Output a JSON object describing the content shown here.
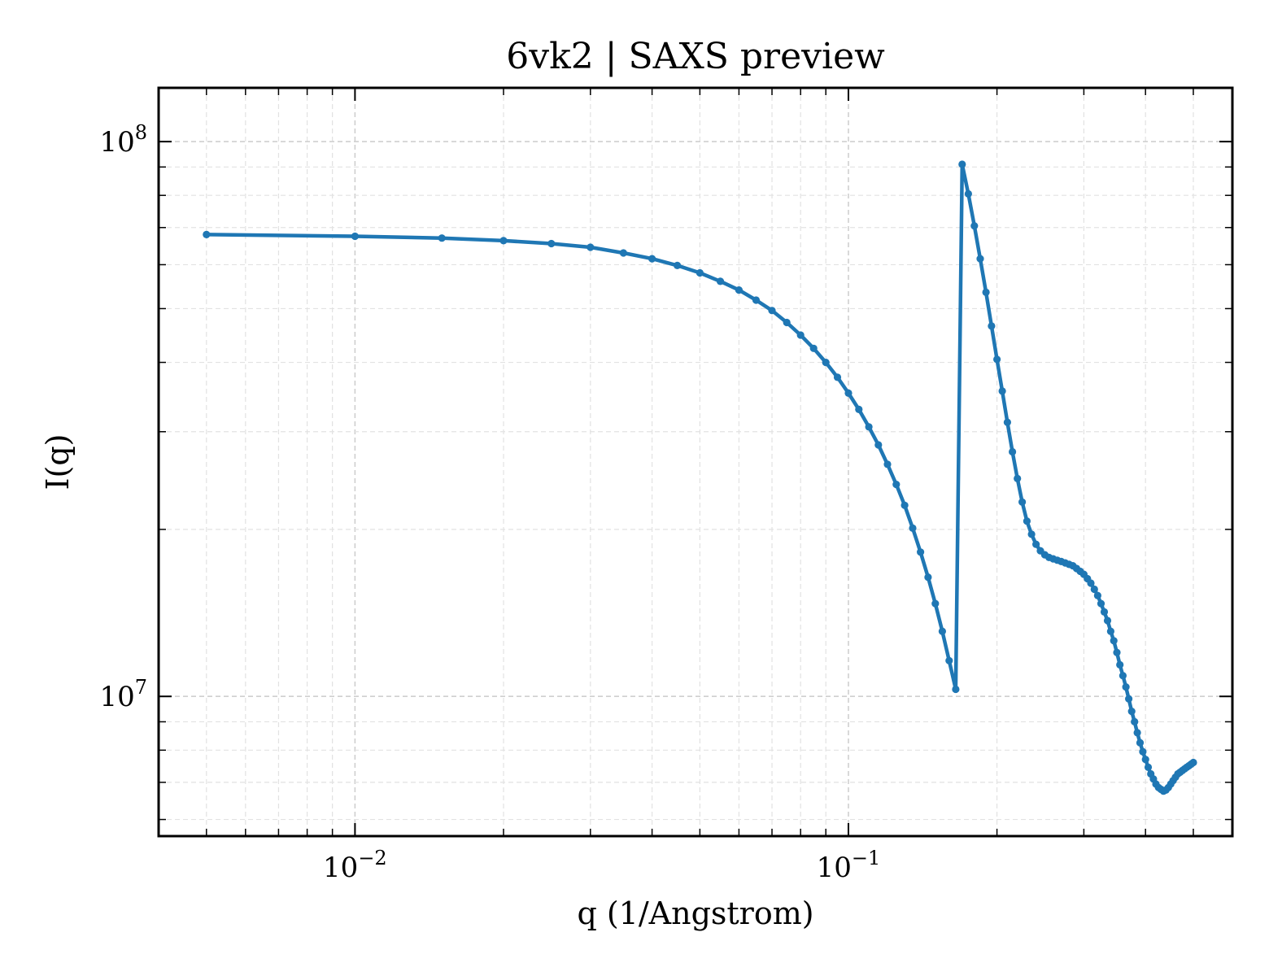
{
  "chart_data": {
    "type": "line",
    "title": "6vk2 | SAXS preview",
    "xlabel": "q (1/Angstrom)",
    "ylabel": "I(q)",
    "xscale": "log",
    "yscale": "log",
    "xlim": [
      0.004,
      0.6
    ],
    "ylim": [
      5600000.0,
      125000000.0
    ],
    "grid": true,
    "color": "#1f77b4",
    "x_ticks": [
      {
        "value": 0.01,
        "base": "10",
        "exp": "−2"
      },
      {
        "value": 0.1,
        "base": "10",
        "exp": "−1"
      }
    ],
    "y_ticks": [
      {
        "value": 10000000.0,
        "base": "10",
        "exp": "7"
      },
      {
        "value": 100000000.0,
        "base": "10",
        "exp": "8"
      }
    ],
    "series": [
      {
        "x": [
          0.005,
          0.01,
          0.015,
          0.02,
          0.025,
          0.03,
          0.035,
          0.04,
          0.045,
          0.05,
          0.055,
          0.06,
          0.065,
          0.07,
          0.075,
          0.08,
          0.085,
          0.09,
          0.095,
          0.1,
          0.105,
          0.11,
          0.115,
          0.12,
          0.125,
          0.13,
          0.135,
          0.14,
          0.145,
          0.15,
          0.155,
          0.16,
          0.165,
          0.17,
          0.175,
          0.18,
          0.185,
          0.19,
          0.195,
          0.2,
          0.205,
          0.21,
          0.215,
          0.22,
          0.225,
          0.23,
          0.235,
          0.24,
          0.245,
          0.25,
          0.255,
          0.26,
          0.265,
          0.27,
          0.275,
          0.28,
          0.285,
          0.29,
          0.295,
          0.3,
          0.305,
          0.31,
          0.315,
          0.32,
          0.325,
          0.33,
          0.335,
          0.34,
          0.345,
          0.35,
          0.355,
          0.36,
          0.365,
          0.37,
          0.375,
          0.38,
          0.385,
          0.39,
          0.395,
          0.4,
          0.405,
          0.41,
          0.415,
          0.42,
          0.425,
          0.43,
          0.435,
          0.44,
          0.445,
          0.45,
          0.455,
          0.46,
          0.465,
          0.47,
          0.475,
          0.48,
          0.485,
          0.49,
          0.495,
          0.5
        ],
        "y": [
          68000000.0,
          67500000.0,
          67000000.0,
          66300000.0,
          65500000.0,
          64500000.0,
          63000000.0,
          61500000.0,
          59800000.0,
          58000000.0,
          56000000.0,
          54000000.0,
          51800000.0,
          49600000.0,
          47200000.0,
          44800000.0,
          42400000.0,
          40000000.0,
          37600000.0,
          35200000.0,
          32900000.0,
          30600000.0,
          28400000.0,
          26200000.0,
          24100000.0,
          22100000.0,
          20100000.0,
          18200000.0,
          16400000.0,
          14700000.0,
          13100000.0,
          11600000.0,
          10300000.0,
          91000000.0,
          80500000.0,
          70500000.0,
          61500000.0,
          53500000.0,
          46500000.0,
          40500000.0,
          35500000.0,
          31200000.0,
          27600000.0,
          24700000.0,
          22400000.0,
          20700000.0,
          19600000.0,
          18800000.0,
          18300000.0,
          18000000.0,
          17800000.0,
          17700000.0,
          17600000.0,
          17500000.0,
          17400000.0,
          17300000.0,
          17200000.0,
          17000000.0,
          16800000.0,
          16600000.0,
          16300000.0,
          16000000.0,
          15600000.0,
          15200000.0,
          14700000.0,
          14200000.0,
          13700000.0,
          13100000.0,
          12600000.0,
          12000000.0,
          11400000.0,
          10900000.0,
          10400000.0,
          9900000.0,
          9400000.0,
          9000000.0,
          8600000.0,
          8250000.0,
          7950000.0,
          7700000.0,
          7450000.0,
          7250000.0,
          7100000.0,
          6950000.0,
          6850000.0,
          6800000.0,
          6750000.0,
          6780000.0,
          6850000.0,
          6950000.0,
          7050000.0,
          7150000.0,
          7250000.0,
          7300000.0,
          7350000.0,
          7400000.0,
          7450000.0,
          7500000.0,
          7550000.0,
          7600000.0
        ]
      }
    ]
  }
}
